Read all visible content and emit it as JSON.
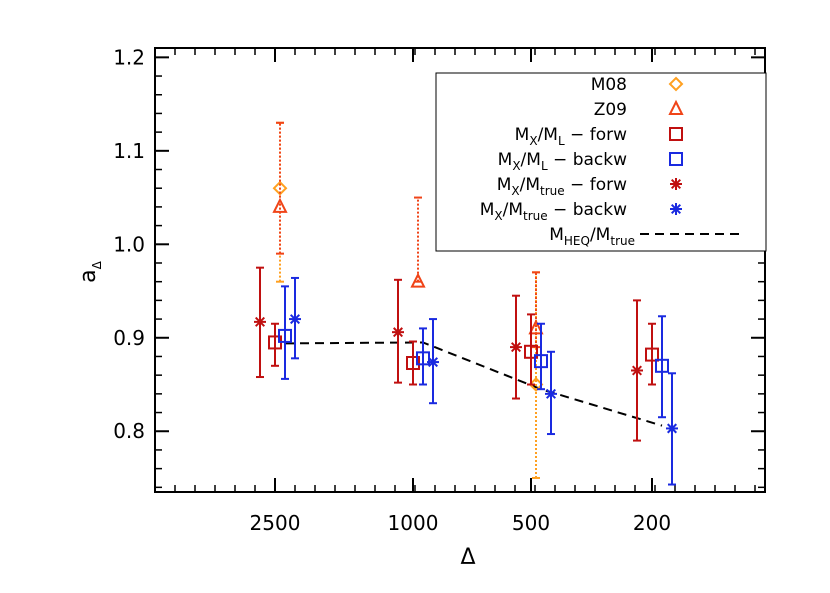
{
  "chart_data": {
    "type": "scatter",
    "xlabel": "Δ",
    "ylabel": "a",
    "ylabel_sub": "Δ",
    "categories": [
      "2500",
      "1000",
      "500",
      "200"
    ],
    "x": [
      2500,
      1000,
      500,
      200
    ],
    "ylim": [
      0.735,
      1.21
    ],
    "yticks": [
      "0.8",
      "0.9",
      "1.0",
      "1.1",
      "1.2"
    ],
    "ytick_values": [
      0.8,
      0.9,
      1.0,
      1.1,
      1.2
    ],
    "legend_position": "top-right",
    "series": [
      {
        "name": "M08",
        "label_main": "M08",
        "marker": "diamond",
        "color": "#ffa020",
        "errorbar_style": "dotted",
        "points": [
          {
            "x": 2500,
            "y": 1.06,
            "ylo": 0.96,
            "yhi": 1.13
          },
          {
            "x": 500,
            "y": 0.85,
            "ylo": 0.75,
            "yhi": 0.97
          }
        ]
      },
      {
        "name": "Z09",
        "label_main": "Z09",
        "marker": "triangle",
        "color": "#f04418",
        "errorbar_style": "dotted",
        "points": [
          {
            "x": 2500,
            "y": 1.04,
            "ylo": 0.99,
            "yhi": 1.13
          },
          {
            "x": 1000,
            "y": 0.96,
            "ylo": 0.96,
            "yhi": 1.05
          },
          {
            "x": 500,
            "y": 0.91,
            "ylo": 0.89,
            "yhi": 0.97
          }
        ]
      },
      {
        "name": "M_X/M_L - forw",
        "label_main": "M",
        "label_sub1": "X",
        "label_mid": "/M",
        "label_sub2": "L",
        "label_end": " − forw",
        "marker": "square",
        "color": "#c01010",
        "errorbar_style": "solid",
        "points": [
          {
            "x": 2500,
            "y": 0.895,
            "ylo": 0.87,
            "yhi": 0.915
          },
          {
            "x": 1000,
            "y": 0.873,
            "ylo": 0.85,
            "yhi": 0.896
          },
          {
            "x": 500,
            "y": 0.885,
            "ylo": 0.85,
            "yhi": 0.925
          },
          {
            "x": 200,
            "y": 0.882,
            "ylo": 0.85,
            "yhi": 0.915
          }
        ]
      },
      {
        "name": "M_X/M_L - backw",
        "label_main": "M",
        "label_sub1": "X",
        "label_mid": "/M",
        "label_sub2": "L",
        "label_end": " − backw",
        "marker": "square",
        "color": "#1a2ae0",
        "errorbar_style": "solid",
        "points": [
          {
            "x": 2500,
            "y": 0.902,
            "ylo": 0.856,
            "yhi": 0.955
          },
          {
            "x": 1000,
            "y": 0.878,
            "ylo": 0.85,
            "yhi": 0.91
          },
          {
            "x": 500,
            "y": 0.875,
            "ylo": 0.845,
            "yhi": 0.915
          },
          {
            "x": 200,
            "y": 0.87,
            "ylo": 0.815,
            "yhi": 0.923
          }
        ]
      },
      {
        "name": "M_X/M_true - forw",
        "label_main": "M",
        "label_sub1": "X",
        "label_mid": "/M",
        "label_sub2": "true",
        "label_end": " − forw",
        "marker": "asterisk",
        "color": "#c01010",
        "errorbar_style": "solid",
        "points": [
          {
            "x": 2500,
            "y": 0.917,
            "ylo": 0.858,
            "yhi": 0.975
          },
          {
            "x": 1000,
            "y": 0.906,
            "ylo": 0.852,
            "yhi": 0.962
          },
          {
            "x": 500,
            "y": 0.89,
            "ylo": 0.835,
            "yhi": 0.945
          },
          {
            "x": 200,
            "y": 0.865,
            "ylo": 0.79,
            "yhi": 0.94
          }
        ]
      },
      {
        "name": "M_X/M_true - backw",
        "label_main": "M",
        "label_sub1": "X",
        "label_mid": "/M",
        "label_sub2": "true",
        "label_end": " − backw",
        "marker": "asterisk",
        "color": "#1a2ae0",
        "errorbar_style": "solid",
        "points": [
          {
            "x": 2500,
            "y": 0.92,
            "ylo": 0.878,
            "yhi": 0.964
          },
          {
            "x": 1000,
            "y": 0.874,
            "ylo": 0.83,
            "yhi": 0.92
          },
          {
            "x": 500,
            "y": 0.84,
            "ylo": 0.797,
            "yhi": 0.885
          },
          {
            "x": 200,
            "y": 0.803,
            "ylo": 0.743,
            "yhi": 0.862
          }
        ]
      }
    ],
    "line": {
      "name": "M_HEQ/M_true",
      "label_main": "M",
      "label_sub1": "HEQ",
      "label_mid": "/M",
      "label_sub2": "true",
      "label_end": "",
      "style": "dashed",
      "color": "#000000",
      "points": [
        {
          "x": 2500,
          "y": 0.894
        },
        {
          "x": 1000,
          "y": 0.895
        },
        {
          "x": 500,
          "y": 0.845
        },
        {
          "x": 200,
          "y": 0.806
        }
      ]
    }
  }
}
